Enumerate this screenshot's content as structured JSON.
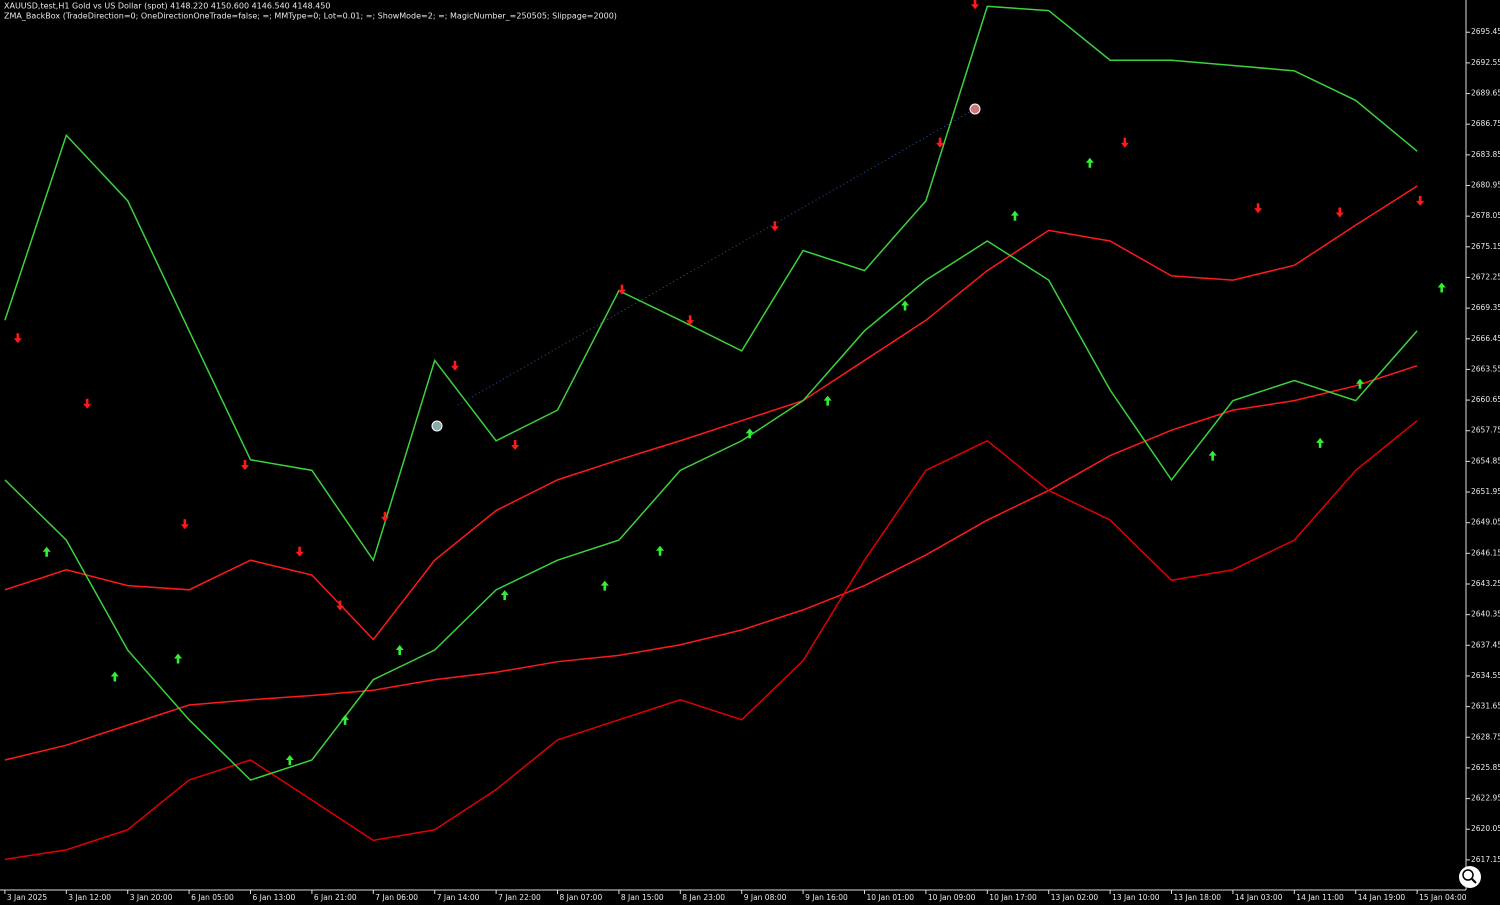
{
  "chart_data": {
    "type": "line",
    "title": "XAUUSD,test,H1  Gold vs US Dollar (spot)  4148.220 4150.600 4146.540 4148.450",
    "subtitle": "ZMA_BackBox (TradeDirection=0; OneDirectionOneTrade=false; =; MMType=0; Lot=0.01; =; ShowMode=2; =; MagicNumber_=250505; Slippage=2000)",
    "categories": [
      "3 Jan 2025",
      "3 Jan 12:00",
      "3 Jan 20:00",
      "6 Jan 05:00",
      "6 Jan 13:00",
      "6 Jan 21:00",
      "7 Jan 06:00",
      "7 Jan 14:00",
      "7 Jan 22:00",
      "8 Jan 07:00",
      "8 Jan 15:00",
      "8 Jan 23:00",
      "9 Jan 08:00",
      "9 Jan 16:00",
      "10 Jan 01:00",
      "10 Jan 09:00",
      "10 Jan 17:00",
      "13 Jan 02:00",
      "13 Jan 10:00",
      "13 Jan 18:00",
      "14 Jan 03:00",
      "14 Jan 11:00",
      "14 Jan 19:00",
      "15 Jan 04:00"
    ],
    "xlim": [
      -0.08,
      23.78
    ],
    "ylim": [
      2614.3,
      2698.5
    ],
    "yticks": [
      2617.15,
      2620.05,
      2622.95,
      2625.85,
      2628.75,
      2631.65,
      2634.55,
      2637.45,
      2640.35,
      2643.25,
      2646.15,
      2649.05,
      2651.95,
      2654.85,
      2657.75,
      2660.65,
      2663.55,
      2666.45,
      2669.35,
      2672.25,
      2675.15,
      2678.05,
      2680.95,
      2683.85,
      2686.75,
      2689.65,
      2692.55,
      2695.45
    ],
    "series": [
      {
        "color": "#ff1a1a",
        "values": [
          2626.6,
          2628.0,
          2629.9,
          2631.8,
          2632.3,
          2632.7,
          2633.2,
          2634.2,
          2634.9,
          2635.9,
          2636.5,
          2637.5,
          2638.9,
          2640.8,
          2643.1,
          2646.0,
          2649.3,
          2652.1,
          2655.4,
          2657.8,
          2659.7,
          2660.6,
          2662.0,
          2663.9
        ]
      },
      {
        "color": "#ff1a1a",
        "values": [
          2642.7,
          2644.6,
          2643.1,
          2642.7,
          2645.5,
          2644.1,
          2638.0,
          2645.5,
          2650.2,
          2653.1,
          2655.0,
          2656.8,
          2658.7,
          2660.6,
          2664.4,
          2668.2,
          2672.9,
          2676.7,
          2675.7,
          2672.4,
          2672.0,
          2673.4,
          2677.2,
          2680.9
        ]
      },
      {
        "color": "#e00000",
        "values": [
          2617.2,
          2618.1,
          2620.0,
          2624.7,
          2626.6,
          2622.8,
          2619.0,
          2620.0,
          2623.8,
          2628.5,
          2630.4,
          2632.3,
          2630.4,
          2636.0,
          2645.5,
          2654.0,
          2656.8,
          2652.1,
          2649.3,
          2643.6,
          2644.6,
          2647.4,
          2654.0,
          2658.7
        ]
      },
      {
        "color": "#3cd23c",
        "values": [
          2668.2,
          2685.7,
          2679.5,
          2667.2,
          2655.0,
          2654.0,
          2645.5,
          2664.4,
          2656.8,
          2659.7,
          2671.0,
          2668.2,
          2665.3,
          2674.8,
          2672.9,
          2679.5,
          2697.9,
          2697.5,
          2692.8,
          2692.8,
          2692.3,
          2691.8,
          2689.0,
          2684.2
        ]
      },
      {
        "color": "#3cd23c",
        "values": [
          2653.1,
          2647.4,
          2637.0,
          2630.4,
          2624.7,
          2626.6,
          2634.2,
          2637.0,
          2642.7,
          2645.5,
          2647.4,
          2654.0,
          2656.8,
          2660.6,
          2667.2,
          2672.0,
          2675.7,
          2672.0,
          2661.6,
          2653.1,
          2660.6,
          2662.5,
          2660.6,
          2667.2
        ]
      }
    ],
    "up_arrows": {
      "color": "#33ee33",
      "x": [
        0.68,
        1.79,
        2.82,
        4.64,
        5.54,
        6.43,
        8.14,
        9.77,
        10.67,
        12.13,
        13.4,
        14.66,
        16.45,
        17.67,
        19.67,
        21.42,
        22.07,
        23.4
      ],
      "values": [
        2646.3,
        2634.5,
        2636.2,
        2626.6,
        2630.4,
        2637.0,
        2642.2,
        2643.1,
        2646.4,
        2657.5,
        2660.6,
        2669.6,
        2678.1,
        2683.1,
        2655.4,
        2656.6,
        2662.2,
        2671.3
      ]
    },
    "down_arrows": {
      "color": "#ff1a1a",
      "x": [
        0.21,
        1.34,
        2.93,
        3.91,
        4.8,
        5.46,
        6.19,
        7.33,
        8.31,
        10.05,
        11.16,
        12.54,
        15.23,
        15.8,
        18.24,
        20.41,
        21.74,
        23.05
      ],
      "values": [
        2666.5,
        2660.3,
        2648.9,
        2654.5,
        2646.3,
        2641.2,
        2649.6,
        2663.9,
        2656.4,
        2671.1,
        2668.2,
        2677.1,
        2685.0,
        2698.1,
        2685.0,
        2678.8,
        2678.4,
        2679.5
      ]
    }
  }
}
